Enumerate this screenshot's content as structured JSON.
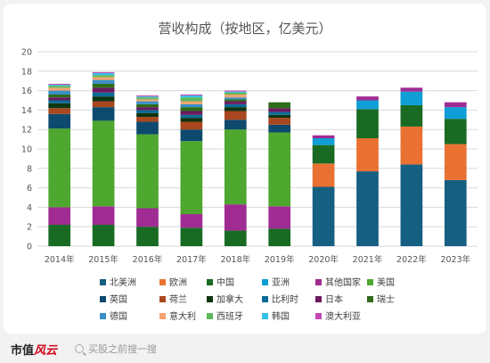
{
  "footer": {
    "brand_main": "市值",
    "brand_accent": "风云",
    "search_placeholder": "买股之前搜一搜"
  },
  "chart_data": {
    "type": "bar",
    "stacked": true,
    "title": "营收构成（按地区，亿美元）",
    "ylim": [
      0,
      20
    ],
    "yticks": [
      0,
      2,
      4,
      6,
      8,
      10,
      12,
      14,
      16,
      18,
      20
    ],
    "grid": true,
    "legend_position": "bottom",
    "categories": [
      "2014年",
      "2015年",
      "2016年",
      "2017年",
      "2018年",
      "2019年",
      "2020年",
      "2021年",
      "2022年",
      "2023年"
    ],
    "series": [
      {
        "name": "北美洲",
        "color": "#156082",
        "values": [
          0,
          0,
          0,
          0,
          0,
          0,
          6.1,
          7.7,
          8.4,
          6.8
        ]
      },
      {
        "name": "欧洲",
        "color": "#e97132",
        "values": [
          0,
          0,
          0,
          0,
          0,
          0,
          2.4,
          3.4,
          3.9,
          3.7
        ]
      },
      {
        "name": "中国",
        "color": "#196b24",
        "values": [
          2.2,
          2.2,
          2.0,
          1.9,
          1.6,
          1.8,
          1.9,
          3.0,
          2.2,
          2.6
        ]
      },
      {
        "name": "亚洲",
        "color": "#0f9ed5",
        "values": [
          0,
          0,
          0,
          0,
          0,
          0,
          0.7,
          0.9,
          1.4,
          1.2
        ]
      },
      {
        "name": "其他国家",
        "color": "#a02b93",
        "values": [
          1.8,
          1.9,
          1.9,
          1.4,
          2.7,
          2.3,
          0.3,
          0.4,
          0.4,
          0.5
        ]
      },
      {
        "name": "美国",
        "color": "#4ea72e",
        "values": [
          8.1,
          8.8,
          7.6,
          7.5,
          7.7,
          7.6,
          0,
          0,
          0,
          0
        ]
      },
      {
        "name": "英国",
        "color": "#0e4a6e",
        "values": [
          1.5,
          1.4,
          1.3,
          1.2,
          1.0,
          0.8,
          0,
          0,
          0,
          0
        ]
      },
      {
        "name": "荷兰",
        "color": "#a9471f",
        "values": [
          0.6,
          0.6,
          0.5,
          0.8,
          0.9,
          0.7,
          0,
          0,
          0,
          0
        ]
      },
      {
        "name": "加拿大",
        "color": "#0d3512",
        "values": [
          0.5,
          0.5,
          0.4,
          0.4,
          0.4,
          0.3,
          0,
          0,
          0,
          0
        ]
      },
      {
        "name": "比利时",
        "color": "#0a6c96",
        "values": [
          0.3,
          0.4,
          0.3,
          0.3,
          0.3,
          0.3,
          0,
          0,
          0,
          0
        ]
      },
      {
        "name": "日本",
        "color": "#6a1a5e",
        "values": [
          0.3,
          0.5,
          0.3,
          0.4,
          0.3,
          0.4,
          0,
          0,
          0,
          0
        ]
      },
      {
        "name": "瑞士",
        "color": "#2e6b1a",
        "values": [
          0.3,
          0.4,
          0.3,
          0.4,
          0.2,
          0.6,
          0,
          0,
          0,
          0
        ]
      },
      {
        "name": "德国",
        "color": "#3a8fc4",
        "values": [
          0.4,
          0.4,
          0.3,
          0.3,
          0.2,
          0,
          0,
          0,
          0,
          0
        ]
      },
      {
        "name": "意大利",
        "color": "#f3a36f",
        "values": [
          0.3,
          0.3,
          0.2,
          0.3,
          0.3,
          0,
          0,
          0,
          0,
          0
        ]
      },
      {
        "name": "西班牙",
        "color": "#5cb85c",
        "values": [
          0.2,
          0.2,
          0.2,
          0.4,
          0.2,
          0,
          0,
          0,
          0,
          0
        ]
      },
      {
        "name": "韩国",
        "color": "#35c0e8",
        "values": [
          0.1,
          0.2,
          0.1,
          0.2,
          0.1,
          0,
          0,
          0,
          0,
          0
        ]
      },
      {
        "name": "澳大利亚",
        "color": "#c548b4",
        "values": [
          0.1,
          0.1,
          0.1,
          0.1,
          0.1,
          0,
          0,
          0,
          0,
          0
        ]
      }
    ]
  }
}
